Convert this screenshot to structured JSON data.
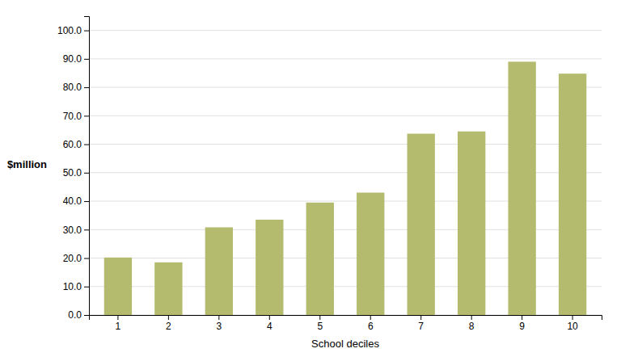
{
  "chart_data": {
    "type": "bar",
    "categories": [
      "1",
      "2",
      "3",
      "4",
      "5",
      "6",
      "7",
      "8",
      "9",
      "10"
    ],
    "values": [
      20.2,
      18.5,
      30.8,
      33.5,
      39.5,
      43.0,
      63.7,
      64.5,
      89.0,
      84.8
    ],
    "color": "#b5bb6e",
    "xlabel": "School deciles",
    "ylabel": "$million",
    "ylim": [
      0,
      105
    ],
    "yticks": [
      {
        "value": 0,
        "label": "0.0"
      },
      {
        "value": 10,
        "label": "10.0"
      },
      {
        "value": 20,
        "label": "20.0"
      },
      {
        "value": 30,
        "label": "30.0"
      },
      {
        "value": 40,
        "label": "40.0"
      },
      {
        "value": 50,
        "label": "50.0"
      },
      {
        "value": 60,
        "label": "60.0"
      },
      {
        "value": 70,
        "label": "70.0"
      },
      {
        "value": 80,
        "label": "80.0"
      },
      {
        "value": 90,
        "label": "90.0"
      },
      {
        "value": 100,
        "label": "100.0"
      }
    ],
    "grid": true
  }
}
